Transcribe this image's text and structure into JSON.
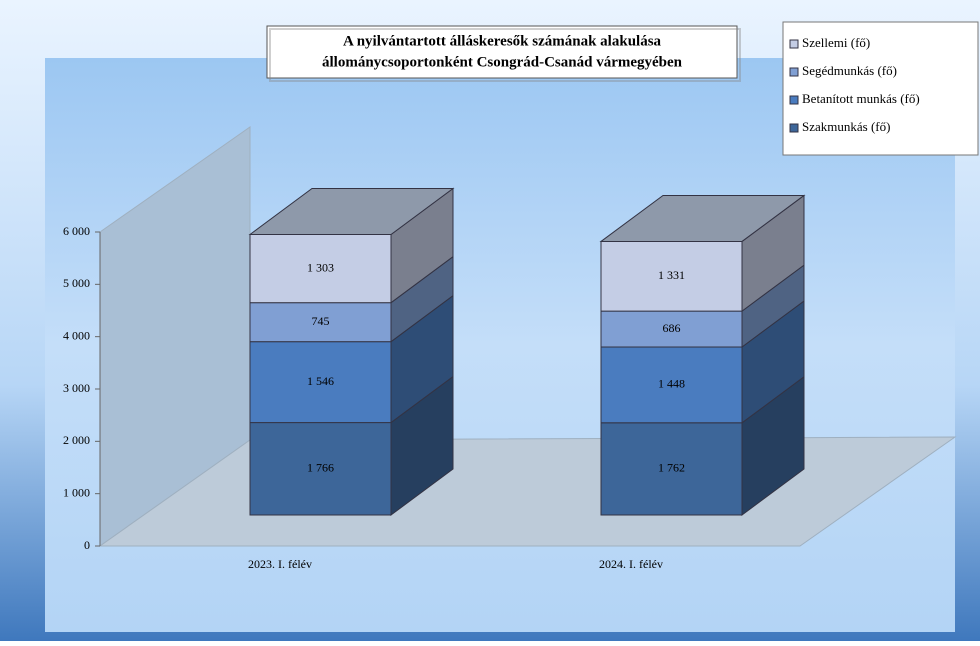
{
  "chart_data": {
    "type": "bar",
    "stacked": true,
    "title": [
      "A nyilvántartott  álláskeresők számának alakulása",
      "állománycsoportonként Csongrád-Csanád  vármegyében"
    ],
    "categories": [
      "2023. I. félév",
      "2024. I. félév"
    ],
    "series": [
      {
        "name": "Szakmunkás  (fő)",
        "color": "#3d6699",
        "values": [
          1766,
          1762
        ],
        "value_labels": [
          "1 766",
          "1 762"
        ]
      },
      {
        "name": "Betanított munkás  (fő)",
        "color": "#4a7cbf",
        "values": [
          1546,
          1448
        ],
        "value_labels": [
          "1 546",
          "1 448"
        ]
      },
      {
        "name": "Segédmunkás (fő)",
        "color": "#809fd3",
        "values": [
          745,
          686
        ],
        "value_labels": [
          "745",
          "686"
        ]
      },
      {
        "name": "Szellemi (fő)",
        "color": "#c4cde5",
        "values": [
          1303,
          1331
        ],
        "value_labels": [
          "1 303",
          "1 331"
        ]
      }
    ],
    "ylim": [
      0,
      6000
    ],
    "yticks": [
      0,
      {
        "value": 1000,
        "label": "1 000"
      },
      {
        "value": 2000,
        "label": "2 000"
      },
      {
        "value": 3000,
        "label": "3 000"
      },
      {
        "value": 4000,
        "label": "4 000"
      },
      {
        "value": 5000,
        "label": "5 000"
      },
      {
        "value": 6000,
        "label": "6 000"
      }
    ],
    "legend": "top-right"
  }
}
